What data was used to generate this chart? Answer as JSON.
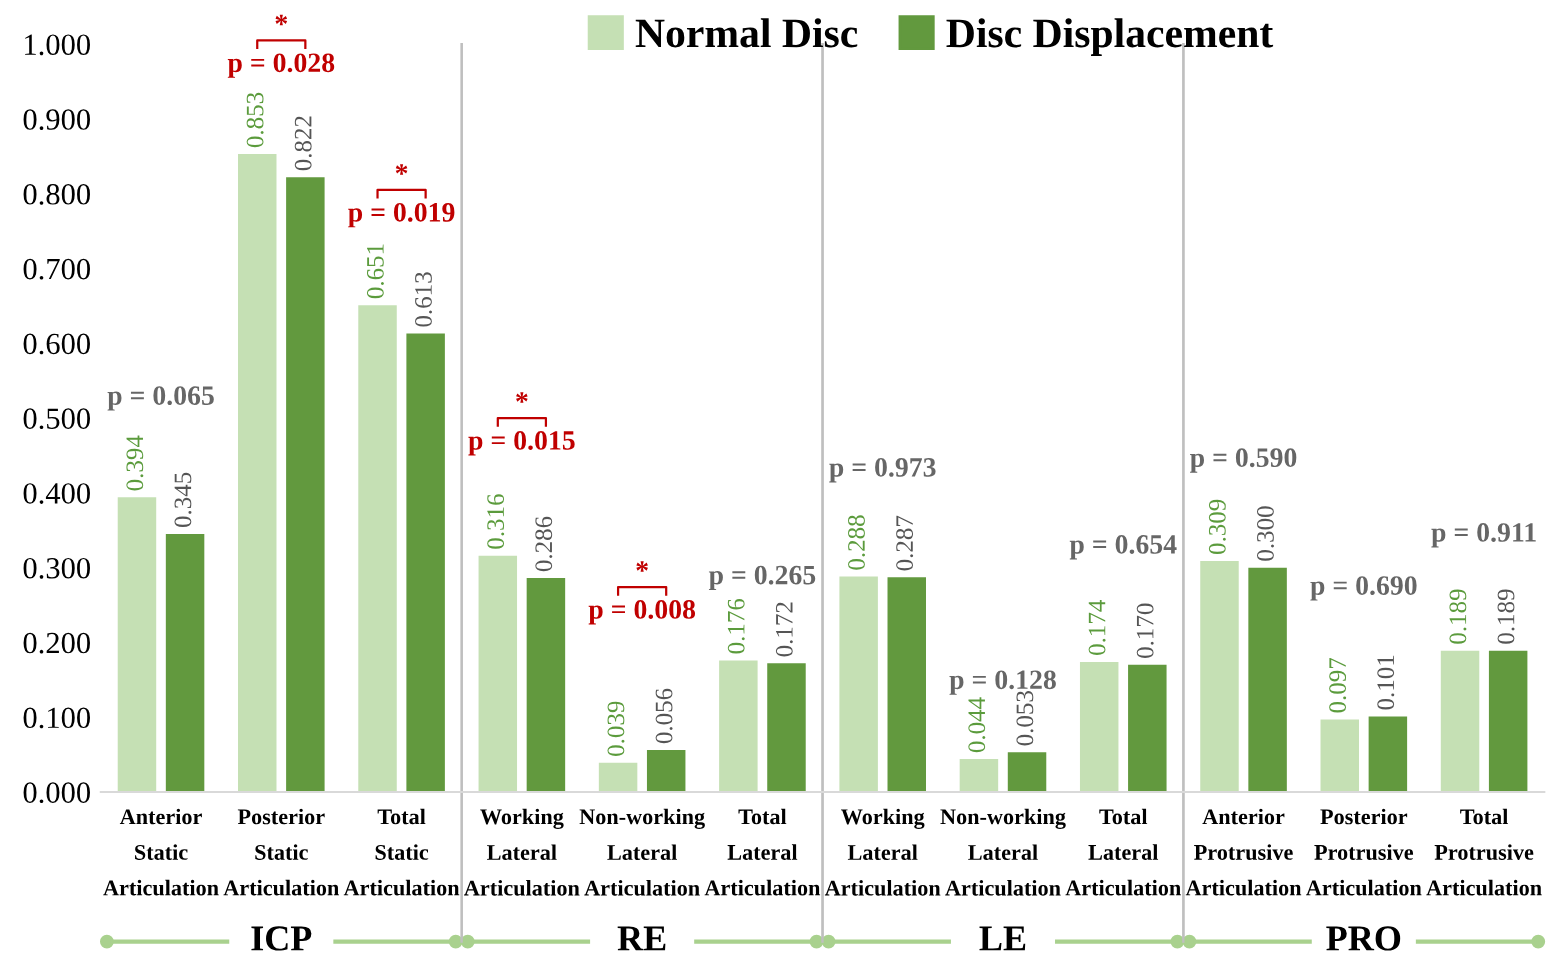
{
  "chart_data": {
    "type": "bar",
    "categories": [
      "Anterior Static Articulation",
      "Posterior Static Articulation",
      "Total Static Articulation",
      "Working Lateral Articulation",
      "Non-working Lateral Articulation",
      "Total Lateral Articulation",
      "Working Lateral Articulation",
      "Non-working Lateral Articulation",
      "Total Lateral Articulation",
      "Anterior Protrusive Articulation",
      "Posterior Protrusive Articulation",
      "Total Protrusive Articulation"
    ],
    "series": [
      {
        "name": "Normal Disc",
        "color": "#c5e0b4",
        "values": [
          0.394,
          0.853,
          0.651,
          0.316,
          0.039,
          0.176,
          0.288,
          0.044,
          0.174,
          0.309,
          0.097,
          0.189
        ],
        "value_labels": [
          "0.394",
          "0.853",
          "0.651",
          "0.316",
          "0.039",
          "0.176",
          "0.288",
          "0.044",
          "0.174",
          "0.309",
          "0.097",
          "0.189"
        ]
      },
      {
        "name": "Disc Displacement",
        "color": "#62993e",
        "values": [
          0.345,
          0.822,
          0.613,
          0.286,
          0.056,
          0.172,
          0.287,
          0.053,
          0.17,
          0.3,
          0.101,
          0.189
        ],
        "value_labels": [
          "0.345",
          "0.822",
          "0.613",
          "0.286",
          "0.056",
          "0.172",
          "0.287",
          "0.053",
          "0.170",
          "0.300",
          "0.101",
          "0.189"
        ]
      }
    ],
    "ylim": [
      0,
      1.0
    ],
    "yticks": [
      {
        "value": 0,
        "label": "0.000"
      },
      {
        "value": 0.1,
        "label": "0.100"
      },
      {
        "value": 0.2,
        "label": "0.200"
      },
      {
        "value": 0.3,
        "label": "0.300"
      },
      {
        "value": 0.4,
        "label": "0.400"
      },
      {
        "value": 0.5,
        "label": "0.500"
      },
      {
        "value": 0.6,
        "label": "0.600"
      },
      {
        "value": 0.7,
        "label": "0.700"
      },
      {
        "value": 0.8,
        "label": "0.800"
      },
      {
        "value": 0.9,
        "label": "0.900"
      },
      {
        "value": 1.0,
        "label": "1.000"
      }
    ],
    "legend": "top",
    "grid": false,
    "annotations": [
      "ICP",
      "RE",
      "LE",
      "PRO",
      "p = 0.065",
      "p = 0.028",
      "*",
      "p = 0.019",
      "*",
      "p = 0.015",
      "*",
      "p = 0.008",
      "*",
      "p = 0.265",
      "p = 0.973",
      "p = 0.128",
      "p = 0.654",
      "p = 0.590",
      "p = 0.690",
      "p = 0.911"
    ]
  }
}
